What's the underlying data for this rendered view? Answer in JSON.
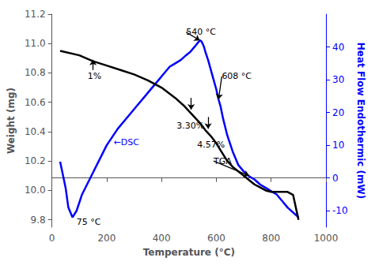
{
  "chart_data": {
    "type": "line",
    "xlabel": "Temperature (°C)",
    "ylabel": "Weight (mg)",
    "y2label": "Heat Flow Endothermic (mW)",
    "series": [
      {
        "name": "TGA",
        "color": "#000000",
        "axis": "y",
        "x": [
          30,
          100,
          150,
          200,
          250,
          300,
          350,
          400,
          450,
          480,
          500,
          520,
          540,
          560,
          580,
          600,
          620,
          640,
          660,
          680,
          700,
          720,
          740,
          760,
          780,
          800,
          820,
          840,
          860,
          880,
          900
        ],
        "values": [
          10.95,
          10.92,
          10.88,
          10.85,
          10.82,
          10.79,
          10.75,
          10.7,
          10.63,
          10.58,
          10.54,
          10.5,
          10.46,
          10.41,
          10.37,
          10.32,
          10.26,
          10.2,
          10.16,
          10.13,
          10.1,
          10.07,
          10.04,
          10.02,
          10.0,
          9.99,
          9.99,
          9.99,
          9.99,
          9.97,
          9.8
        ]
      },
      {
        "name": "DSC",
        "color": "#0000FF",
        "axis": "y2",
        "x": [
          30,
          50,
          60,
          75,
          90,
          110,
          140,
          170,
          200,
          240,
          280,
          310,
          340,
          370,
          390,
          410,
          430,
          450,
          470,
          490,
          505,
          515,
          525,
          530,
          535,
          540,
          545,
          550,
          555,
          560,
          570,
          580,
          590,
          600,
          608,
          615,
          625,
          640,
          660,
          680,
          700,
          720,
          740,
          760,
          780,
          800,
          820,
          840,
          860,
          880,
          900
        ],
        "values": [
          5,
          -3,
          -9,
          -12,
          -10,
          -5,
          0,
          5,
          10,
          15,
          19,
          22,
          25,
          28,
          30,
          32,
          34,
          35,
          36,
          37.5,
          38.5,
          39.5,
          40.5,
          41.0,
          41.5,
          42.0,
          41.8,
          41.0,
          40.0,
          38.5,
          36,
          33,
          30,
          27,
          24,
          22,
          18,
          13,
          8,
          4,
          2,
          0.5,
          -0.5,
          -2,
          -3,
          -4,
          -5,
          -7,
          -9,
          -10.5,
          -12
        ]
      }
    ],
    "xlim": [
      0,
      1000
    ],
    "xticks": [
      0,
      200,
      400,
      600,
      800,
      1000
    ],
    "ylim": [
      9.75,
      11.2
    ],
    "yticks": [
      9.8,
      {
        "value": 10.0,
        "label": "10.0"
      },
      10.2,
      10.4,
      10.6,
      10.8,
      {
        "value": 11.0,
        "label": "11.0"
      },
      11.2
    ],
    "y2lim": [
      -15,
      50
    ],
    "y2ticks": [
      -10,
      0,
      10,
      20,
      30,
      40
    ],
    "y2color": "#0000FF",
    "grid": false,
    "annotations": [
      {
        "text": "1%",
        "x": 130,
        "y": 10.78,
        "axis": "y",
        "color": "#000000"
      },
      {
        "text": "3.30%",
        "x": 455,
        "y": 10.44,
        "axis": "y",
        "color": "#000000"
      },
      {
        "text": "4.57%",
        "x": 530,
        "y": 10.31,
        "axis": "y",
        "color": "#000000"
      },
      {
        "text": "TGA",
        "x": 590,
        "y": 10.2,
        "axis": "y",
        "color": "#000000"
      },
      {
        "text": "540 °C",
        "x": 490,
        "y": 44.5,
        "axis": "y2",
        "color": "#000000"
      },
      {
        "text": "608 °C",
        "x": 620,
        "y": 31,
        "axis": "y2",
        "color": "#000000"
      },
      {
        "text": "75 °C",
        "x": 90,
        "y": -13.5,
        "axis": "y2",
        "color": "#000000"
      },
      {
        "text": "←DSC",
        "x": 225,
        "y": 11,
        "axis": "y2",
        "color": "#0000FF"
      }
    ],
    "arrows": [
      {
        "from": [
          150,
          10.82
        ],
        "to": [
          150,
          10.89
        ],
        "axis": "y"
      },
      {
        "from": [
          508,
          10.63
        ],
        "to": [
          508,
          10.55
        ],
        "axis": "y"
      },
      {
        "from": [
          570,
          10.5
        ],
        "to": [
          570,
          10.42
        ],
        "axis": "y"
      },
      {
        "from": [
          590,
          10.2
        ],
        "to": [
          720,
          10.1
        ],
        "axis": "y"
      },
      {
        "from": [
          490,
          44.5
        ],
        "to": [
          540,
          42.0
        ],
        "axis": "y2"
      },
      {
        "from": [
          620,
          31
        ],
        "to": [
          608,
          24
        ],
        "axis": "y2"
      }
    ]
  }
}
